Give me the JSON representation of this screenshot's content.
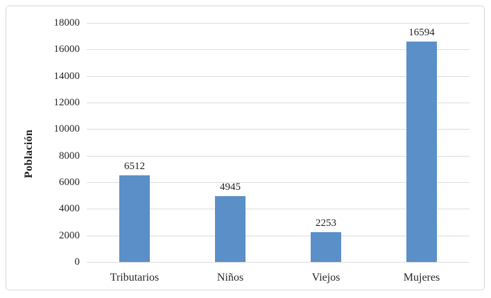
{
  "chart_data": {
    "type": "bar",
    "title": "",
    "xlabel": "",
    "ylabel": "Población",
    "categories": [
      "Tributarios",
      "Niños",
      "Viejos",
      "Mujeres"
    ],
    "values": [
      6512,
      4945,
      2253,
      16594
    ],
    "data_labels": [
      "6512",
      "4945",
      "2253",
      "16594"
    ],
    "ylim": [
      0,
      18000
    ],
    "ytick_step": 2000,
    "yticks": [
      0,
      2000,
      4000,
      6000,
      8000,
      10000,
      12000,
      14000,
      16000,
      18000
    ],
    "ytick_labels": [
      "0",
      "2000",
      "4000",
      "6000",
      "8000",
      "10000",
      "12000",
      "14000",
      "16000",
      "18000"
    ],
    "grid": true,
    "legend": "none",
    "colors": {
      "bar_fill": "#5b8fc7",
      "gridline": "#dcdcdc",
      "text": "#262626",
      "frame_border": "#d6d6d6",
      "background": "#ffffff"
    }
  }
}
